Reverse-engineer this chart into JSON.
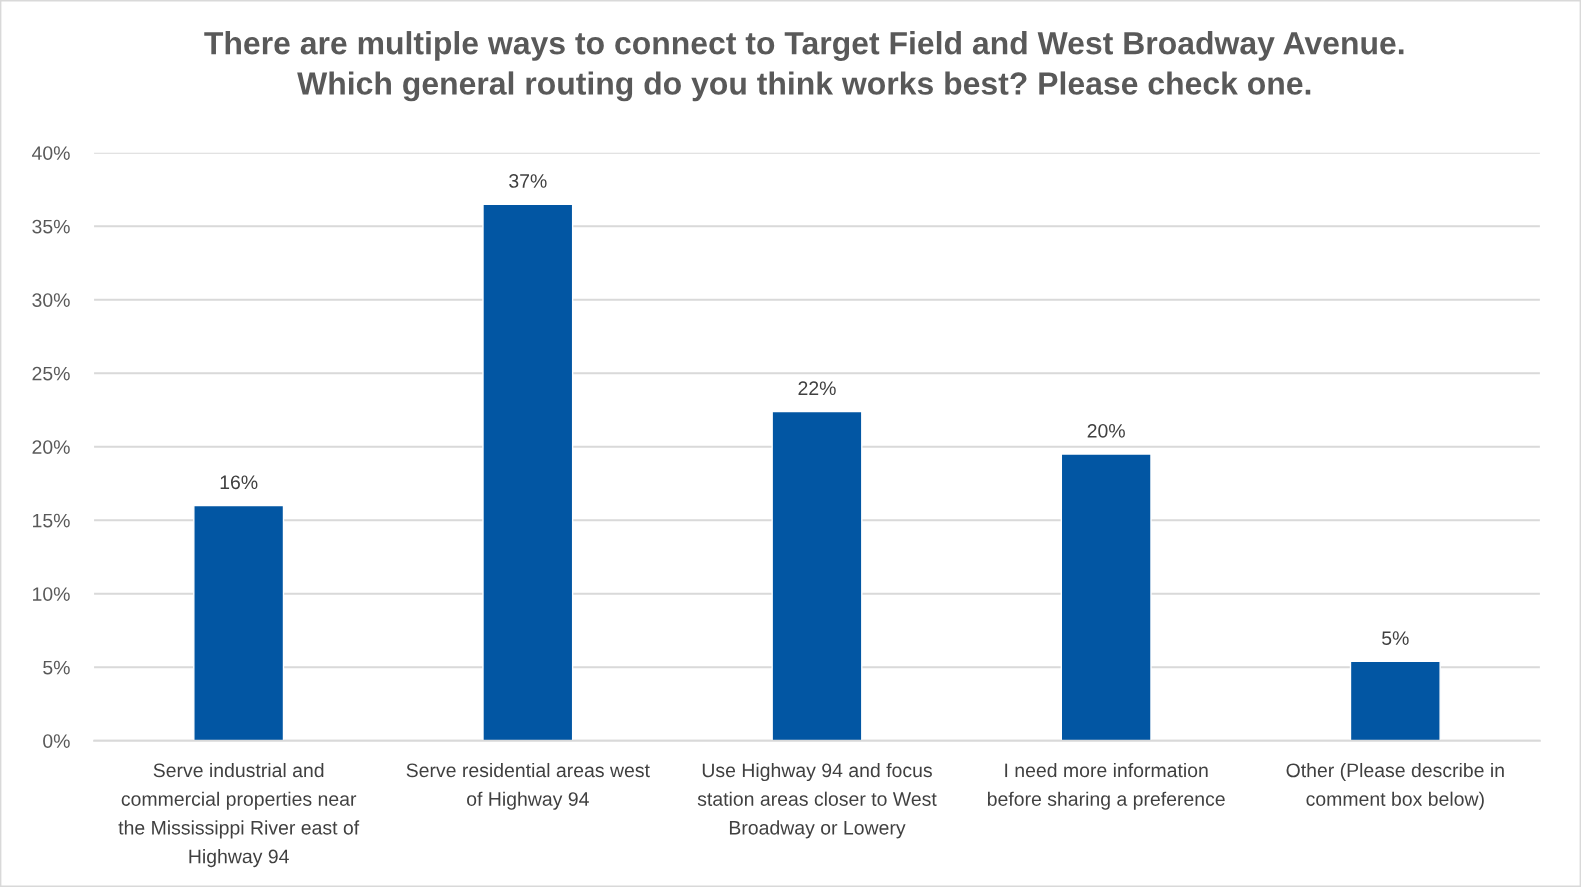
{
  "chart_data": {
    "type": "bar",
    "title": "There are multiple ways to connect to Target Field and West Broadway Avenue.\nWhich general routing do you think works best? Please check one.",
    "categories": [
      "Serve industrial and\ncommercial properties near\nthe Mississippi River east of\nHighway 94",
      "Serve residential areas west\nof Highway 94",
      "Use Highway 94 and focus\nstation areas closer to West\nBroadway or Lowery",
      "I need more information\nbefore sharing a preference",
      "Other (Please describe in\ncomment box below)"
    ],
    "values": [
      16.0,
      36.5,
      22.4,
      19.5,
      5.4
    ],
    "value_labels": [
      "16%",
      "37%",
      "22%",
      "20%",
      "5%"
    ],
    "color": "#0256a3",
    "ylim": [
      0,
      40
    ],
    "yticks": [
      {
        "value": 0,
        "label": "0%"
      },
      {
        "value": 5,
        "label": "5%"
      },
      {
        "value": 10,
        "label": "10%"
      },
      {
        "value": 15,
        "label": "15%"
      },
      {
        "value": 20,
        "label": "20%"
      },
      {
        "value": 25,
        "label": "25%"
      },
      {
        "value": 30,
        "label": "30%"
      },
      {
        "value": 35,
        "label": "35%"
      },
      {
        "value": 40,
        "label": "40%"
      }
    ],
    "grid": "y"
  }
}
